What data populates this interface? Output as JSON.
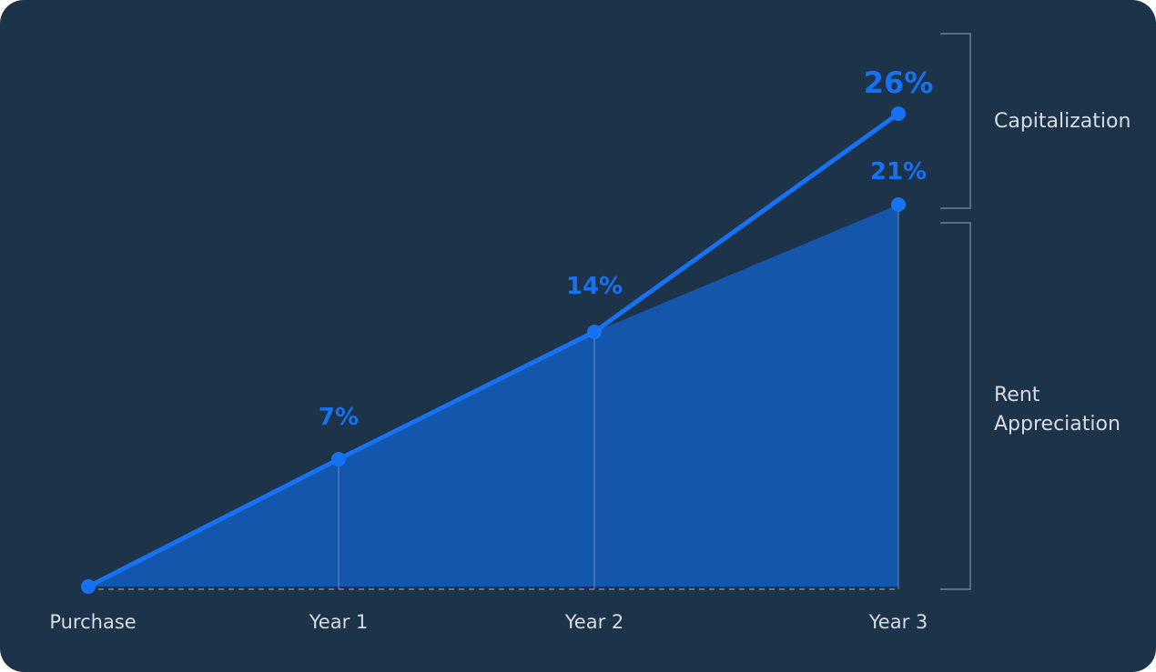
{
  "colors": {
    "background": "#1d3349",
    "accent": "#1672f3",
    "area": "#1456ac",
    "bracket": "#6f7e8f",
    "label": "#d5dce4"
  },
  "chart_data": {
    "type": "area",
    "categories": [
      "Purchase",
      "Year 1",
      "Year 2",
      "Year 3"
    ],
    "ylim": [
      0,
      26
    ],
    "series": [
      {
        "name": "Rent Appreciation",
        "values": [
          0,
          7,
          14,
          21
        ],
        "labels": [
          "",
          "7%",
          "14%",
          "21%"
        ]
      },
      {
        "name": "Capitalization",
        "values": [
          null,
          null,
          14,
          26
        ],
        "labels": [
          "",
          "",
          "",
          "26%"
        ]
      }
    ],
    "brackets": [
      "Capitalization",
      "Rent Appreciation"
    ],
    "grid": false
  }
}
